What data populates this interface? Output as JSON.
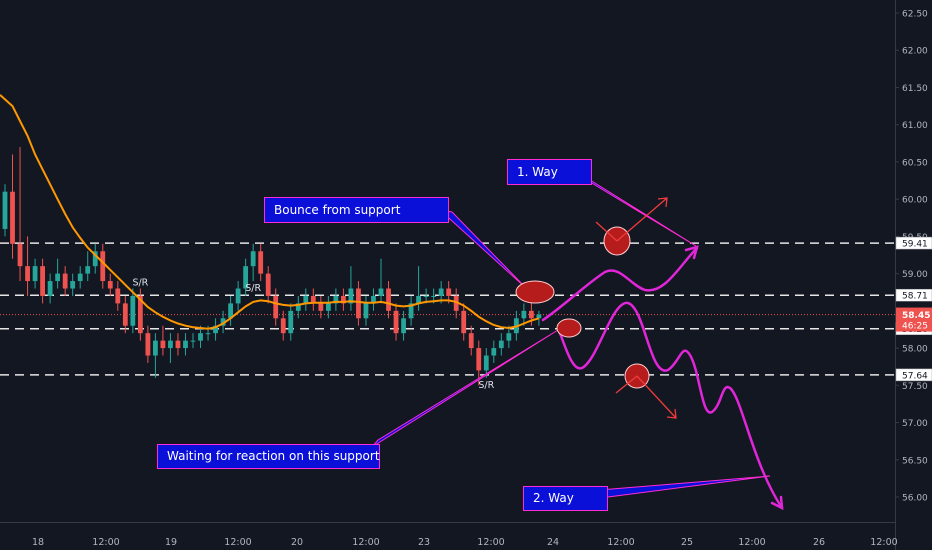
{
  "chart_data": {
    "type": "candlestick",
    "y_axis": {
      "position": "right",
      "ticks": [
        "62.50",
        "62.00",
        "61.50",
        "61.00",
        "60.50",
        "60.00",
        "59.50",
        "59.00",
        "58.50",
        "58.00",
        "57.50",
        "57.00",
        "56.50",
        "56.00"
      ]
    },
    "x_axis": {
      "ticks": [
        "18",
        "12:00",
        "19",
        "12:00",
        "20",
        "12:00",
        "23",
        "12:00",
        "24",
        "12:00",
        "25",
        "12:00",
        "26",
        "12:00"
      ]
    },
    "grid": false,
    "price_levels": [
      {
        "value": 59.41,
        "label": "59.41"
      },
      {
        "value": 58.71,
        "label": "58.71"
      },
      {
        "value": 58.26,
        "label": "58.26"
      },
      {
        "value": 57.64,
        "label": "57.64"
      }
    ],
    "current_price": {
      "value": 58.45,
      "label": "58.45",
      "countdown": "46:25",
      "color": "#ef5350"
    },
    "sr_labels": [
      {
        "text": "S/R",
        "candle_index": 18
      },
      {
        "text": "S/R",
        "candle_index": 33
      },
      {
        "text": "S/R",
        "candle_index": 64
      }
    ],
    "candles": [
      [
        59.6,
        60.2,
        59.5,
        60.1
      ],
      [
        60.1,
        60.6,
        59.2,
        59.4
      ],
      [
        59.4,
        60.7,
        58.9,
        59.1
      ],
      [
        59.1,
        59.5,
        58.7,
        58.9
      ],
      [
        58.9,
        59.2,
        58.8,
        59.1
      ],
      [
        59.1,
        59.2,
        58.6,
        58.7
      ],
      [
        58.7,
        59.0,
        58.6,
        58.9
      ],
      [
        58.9,
        59.2,
        58.8,
        59.0
      ],
      [
        59.0,
        59.1,
        58.7,
        58.8
      ],
      [
        58.8,
        59.0,
        58.7,
        58.9
      ],
      [
        58.9,
        59.1,
        58.8,
        59.0
      ],
      [
        59.0,
        59.3,
        58.9,
        59.1
      ],
      [
        59.1,
        59.4,
        59.0,
        59.3
      ],
      [
        59.3,
        59.4,
        58.8,
        58.9
      ],
      [
        58.9,
        59.0,
        58.7,
        58.8
      ],
      [
        58.8,
        58.9,
        58.5,
        58.6
      ],
      [
        58.6,
        58.7,
        58.2,
        58.3
      ],
      [
        58.3,
        58.8,
        58.2,
        58.7
      ],
      [
        58.7,
        58.8,
        58.1,
        58.2
      ],
      [
        58.2,
        58.3,
        57.8,
        57.9
      ],
      [
        57.9,
        58.2,
        57.6,
        58.1
      ],
      [
        58.1,
        58.3,
        57.9,
        58.0
      ],
      [
        58.0,
        58.2,
        57.8,
        58.1
      ],
      [
        58.1,
        58.2,
        57.9,
        58.0
      ],
      [
        58.0,
        58.2,
        57.9,
        58.1
      ],
      [
        58.1,
        58.2,
        58.0,
        58.1
      ],
      [
        58.1,
        58.3,
        58.0,
        58.2
      ],
      [
        58.2,
        58.3,
        58.1,
        58.2
      ],
      [
        58.2,
        58.4,
        58.1,
        58.3
      ],
      [
        58.3,
        58.5,
        58.2,
        58.4
      ],
      [
        58.4,
        58.7,
        58.3,
        58.6
      ],
      [
        58.6,
        58.9,
        58.5,
        58.8
      ],
      [
        58.8,
        59.2,
        58.7,
        59.1
      ],
      [
        59.1,
        59.4,
        58.9,
        59.3
      ],
      [
        59.3,
        59.4,
        58.9,
        59.0
      ],
      [
        59.0,
        59.1,
        58.6,
        58.7
      ],
      [
        58.7,
        58.8,
        58.3,
        58.4
      ],
      [
        58.4,
        58.5,
        58.1,
        58.2
      ],
      [
        58.2,
        58.6,
        58.1,
        58.5
      ],
      [
        58.5,
        58.7,
        58.4,
        58.6
      ],
      [
        58.6,
        58.8,
        58.5,
        58.7
      ],
      [
        58.7,
        58.8,
        58.5,
        58.6
      ],
      [
        58.6,
        58.7,
        58.4,
        58.5
      ],
      [
        58.5,
        58.7,
        58.4,
        58.6
      ],
      [
        58.6,
        58.8,
        58.5,
        58.7
      ],
      [
        58.7,
        58.8,
        58.5,
        58.6
      ],
      [
        58.6,
        59.1,
        58.5,
        58.8
      ],
      [
        58.8,
        58.9,
        58.3,
        58.4
      ],
      [
        58.4,
        58.7,
        58.3,
        58.6
      ],
      [
        58.6,
        58.8,
        58.5,
        58.7
      ],
      [
        58.7,
        59.2,
        58.6,
        58.8
      ],
      [
        58.8,
        58.9,
        58.4,
        58.5
      ],
      [
        58.5,
        58.6,
        58.1,
        58.2
      ],
      [
        58.2,
        58.5,
        58.1,
        58.4
      ],
      [
        58.4,
        58.7,
        58.3,
        58.6
      ],
      [
        58.6,
        59.1,
        58.5,
        58.7
      ],
      [
        58.7,
        58.8,
        58.6,
        58.7
      ],
      [
        58.7,
        58.8,
        58.6,
        58.7
      ],
      [
        58.7,
        58.9,
        58.6,
        58.8
      ],
      [
        58.8,
        58.9,
        58.6,
        58.7
      ],
      [
        58.7,
        58.8,
        58.4,
        58.5
      ],
      [
        58.5,
        58.6,
        58.1,
        58.2
      ],
      [
        58.2,
        58.3,
        57.9,
        58.0
      ],
      [
        58.0,
        58.1,
        57.5,
        57.7
      ],
      [
        57.7,
        58.0,
        57.6,
        57.9
      ],
      [
        57.9,
        58.1,
        57.8,
        58.0
      ],
      [
        58.0,
        58.2,
        57.9,
        58.1
      ],
      [
        58.1,
        58.3,
        58.0,
        58.2
      ],
      [
        58.2,
        58.5,
        58.1,
        58.4
      ],
      [
        58.4,
        58.6,
        58.3,
        58.5
      ],
      [
        58.5,
        58.7,
        58.3,
        58.4
      ],
      [
        58.4,
        58.5,
        58.3,
        58.45
      ]
    ],
    "moving_average": {
      "color": "#ff9800",
      "values": [
        61.4,
        61.25,
        61.05,
        60.85,
        60.6,
        60.4,
        60.2,
        60.0,
        59.8,
        59.62,
        59.48,
        59.35,
        59.25,
        59.15,
        59.05,
        58.95,
        58.85,
        58.75,
        58.65,
        58.55,
        58.48,
        58.42,
        58.37,
        58.33,
        58.3,
        58.28,
        58.27,
        58.26,
        58.28,
        58.33,
        58.4,
        58.48,
        58.56,
        58.62,
        58.64,
        58.63,
        58.6,
        58.58,
        58.57,
        58.58,
        58.6,
        58.61,
        58.61,
        58.61,
        58.62,
        58.62,
        58.63,
        58.62,
        58.61,
        58.61,
        58.62,
        58.6,
        58.57,
        58.56,
        58.57,
        58.6,
        58.62,
        58.63,
        58.64,
        58.64,
        58.62,
        58.57,
        58.5,
        58.42,
        58.36,
        58.31,
        58.28,
        58.27,
        58.29,
        58.33,
        58.37,
        58.4
      ]
    }
  },
  "annotations": {
    "bounce": "Bounce from support",
    "waiting": "Waiting for reaction on this support",
    "way1": "1. Way",
    "way2": "2. Way"
  },
  "colors": {
    "background": "#131722",
    "up": "#26a69a",
    "down": "#ef5350",
    "callout_fill": "#0b10d8",
    "callout_border": "#ff2bd6",
    "projection": "#e026d8",
    "circle": "#b71c1c"
  }
}
